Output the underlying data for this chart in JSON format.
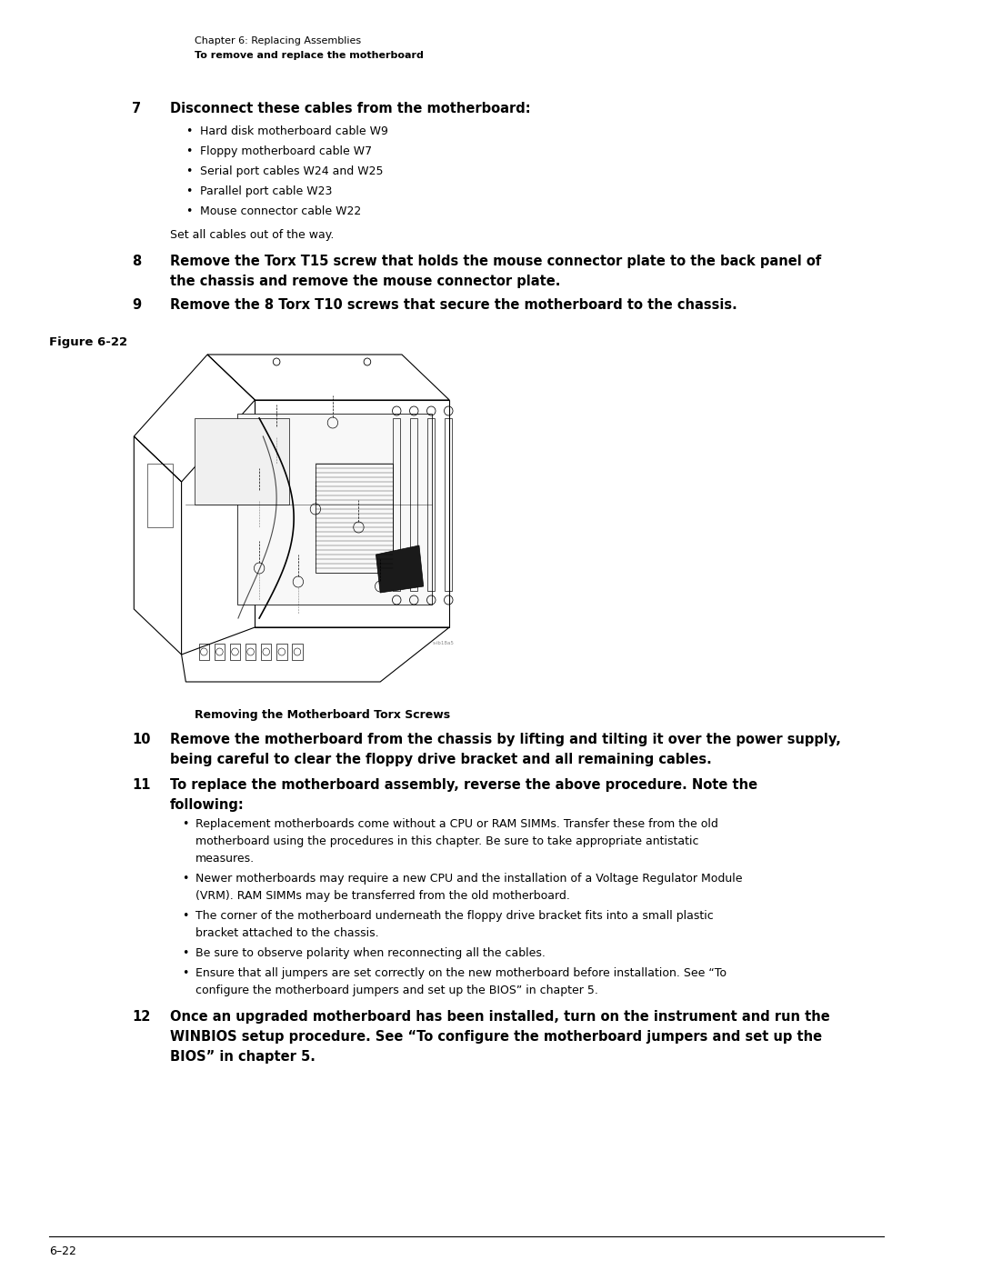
{
  "background_color": "#ffffff",
  "page_width": 10.8,
  "page_height": 13.97,
  "header_line1": "Chapter 6: Replacing Assemblies",
  "header_line2": "To remove and replace the motherboard",
  "step7_text": "Disconnect these cables from the motherboard:",
  "bullets7": [
    "Hard disk motherboard cable W9",
    "Floppy motherboard cable W7",
    "Serial port cables W24 and W25",
    "Parallel port cable W23",
    "Mouse connector cable W22"
  ],
  "step7_note": "Set all cables out of the way.",
  "step8_line1": "Remove the Torx T15 screw that holds the mouse connector plate to the back panel of",
  "step8_line2": "the chassis and remove the mouse connector plate.",
  "step9_text": "Remove the 8 Torx T10 screws that secure the motherboard to the chassis.",
  "figure_label": "Figure 6-22",
  "figure_caption": "Removing the Motherboard Torx Screws",
  "step10_line1": "Remove the motherboard from the chassis by lifting and tilting it over the power supply,",
  "step10_line2": "being careful to clear the floppy drive bracket and all remaining cables.",
  "step11_line1": "To replace the motherboard assembly, reverse the above procedure. Note the",
  "step11_line2": "following:",
  "bullet11_1_lines": [
    "Replacement motherboards come without a CPU or RAM SIMMs. Transfer these from the old",
    "motherboard using the procedures in this chapter. Be sure to take appropriate antistatic",
    "measures."
  ],
  "bullet11_2_lines": [
    "Newer motherboards may require a new CPU and the installation of a Voltage Regulator Module",
    "(VRM). RAM SIMMs may be transferred from the old motherboard."
  ],
  "bullet11_3_lines": [
    "The corner of the motherboard underneath the floppy drive bracket fits into a small plastic",
    "bracket attached to the chassis."
  ],
  "bullet11_4_lines": [
    "Be sure to observe polarity when reconnecting all the cables."
  ],
  "bullet11_5_lines": [
    "Ensure that all jumpers are set correctly on the new motherboard before installation. See “To",
    "configure the motherboard jumpers and set up the BIOS” in chapter 5."
  ],
  "step12_line1": "Once an upgraded motherboard has been installed, turn on the instrument and run the",
  "step12_line2": "WINBIOS setup procedure. See “To configure the motherboard jumpers and set up the",
  "step12_line3": "BIOS” in chapter 5.",
  "footer_text": "6–22",
  "fig_label_small": "s-ib18a5"
}
